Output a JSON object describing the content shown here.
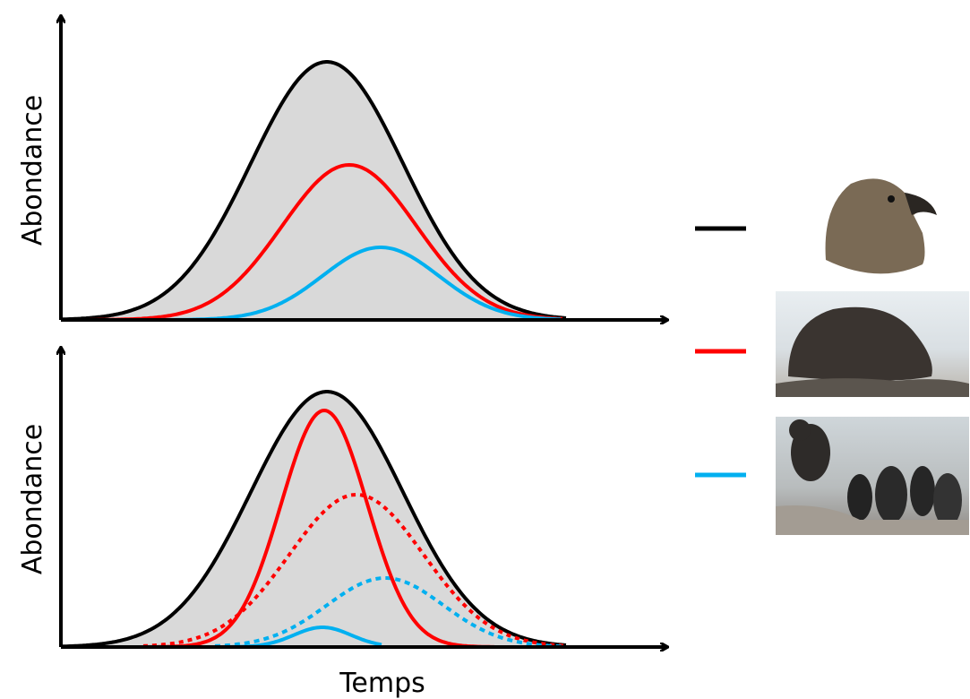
{
  "panels": [
    {
      "y_label": "Abondance"
    },
    {
      "y_label": "Abondance"
    }
  ],
  "x_label": "Temps"
}
